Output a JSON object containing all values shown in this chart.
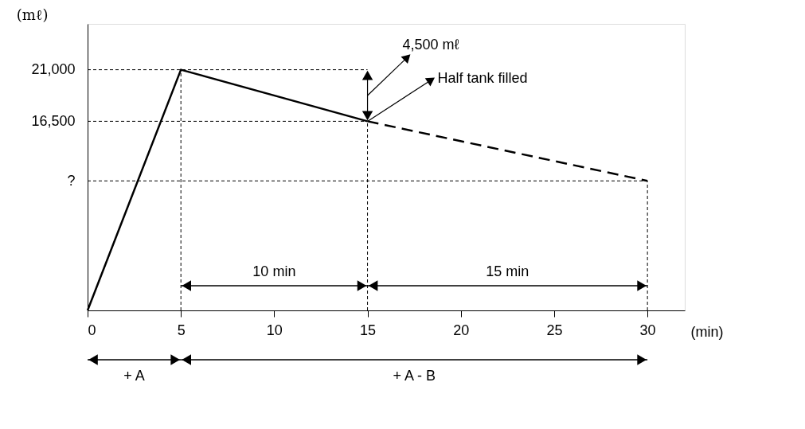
{
  "chart_data": {
    "type": "line",
    "xlabel": "(min)",
    "ylabel": "(mℓ)",
    "series": [
      {
        "color": "#000000",
        "x": [
          0,
          5,
          15
        ],
        "values": [
          0,
          21000,
          16500
        ],
        "line_style": "solid"
      },
      {
        "color": "#000000",
        "x": [
          15,
          30
        ],
        "values": [
          16500,
          11300
        ],
        "line_style": "dashed"
      }
    ],
    "xlim": [
      0,
      32
    ],
    "xticks": [
      0,
      5,
      10,
      15,
      20,
      25,
      30
    ],
    "ylim": [
      0,
      25000
    ],
    "yticks": [
      {
        "value": 11300,
        "label": "?"
      },
      {
        "value": 16500,
        "label": "16,500"
      },
      {
        "value": 21000,
        "label": "21,000"
      }
    ],
    "grid": false,
    "marker": "none",
    "ref_lines": [
      {
        "axis": "y",
        "value": 21000,
        "line_style": "dotted"
      },
      {
        "axis": "y",
        "value": 16500,
        "line_style": "dotted"
      },
      {
        "axis": "y",
        "value": 11300,
        "line_style": "dotted"
      },
      {
        "axis": "x",
        "value": 5,
        "line_style": "dotted"
      },
      {
        "axis": "x",
        "value": 15,
        "line_style": "dotted"
      },
      {
        "axis": "x",
        "value": 30,
        "line_style": "dotted"
      }
    ],
    "annotations": [
      {
        "text": "Half tank filled",
        "x": 15,
        "y": 16500
      },
      "4,500 mℓ",
      "10 min",
      "15 min",
      "+ A",
      "+ A - B"
    ]
  }
}
